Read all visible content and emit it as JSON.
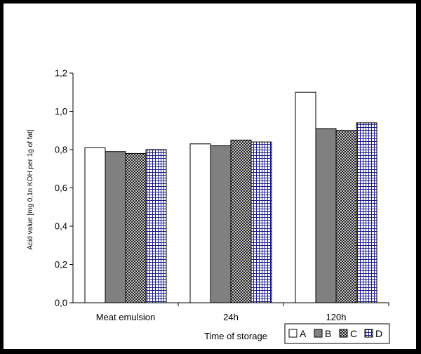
{
  "chart_data": {
    "type": "bar",
    "title": "",
    "xlabel": "Time of storage",
    "ylabel": "Acid value [mg 0,1n KOH per 1g of fat]",
    "categories": [
      "Meat emulsion",
      "24h",
      "120h"
    ],
    "ylim": [
      0,
      1.2
    ],
    "yticks": [
      "0,0",
      "0,2",
      "0,4",
      "0,6",
      "0,8",
      "1,0",
      "1,2"
    ],
    "grid": false,
    "legend_position": "bottom-right",
    "series": [
      {
        "name": "A",
        "values": [
          0.81,
          0.83,
          1.1
        ],
        "color": "#ffffff",
        "pattern": "solid-white"
      },
      {
        "name": "B",
        "values": [
          0.79,
          0.82,
          0.91
        ],
        "color": "#808080",
        "pattern": "solid-gray"
      },
      {
        "name": "C",
        "values": [
          0.78,
          0.85,
          0.9
        ],
        "color": "#404040",
        "pattern": "checker-dark"
      },
      {
        "name": "D",
        "values": [
          0.8,
          0.84,
          0.94
        ],
        "color": "#1a1a8c",
        "pattern": "grid-navy"
      }
    ]
  }
}
